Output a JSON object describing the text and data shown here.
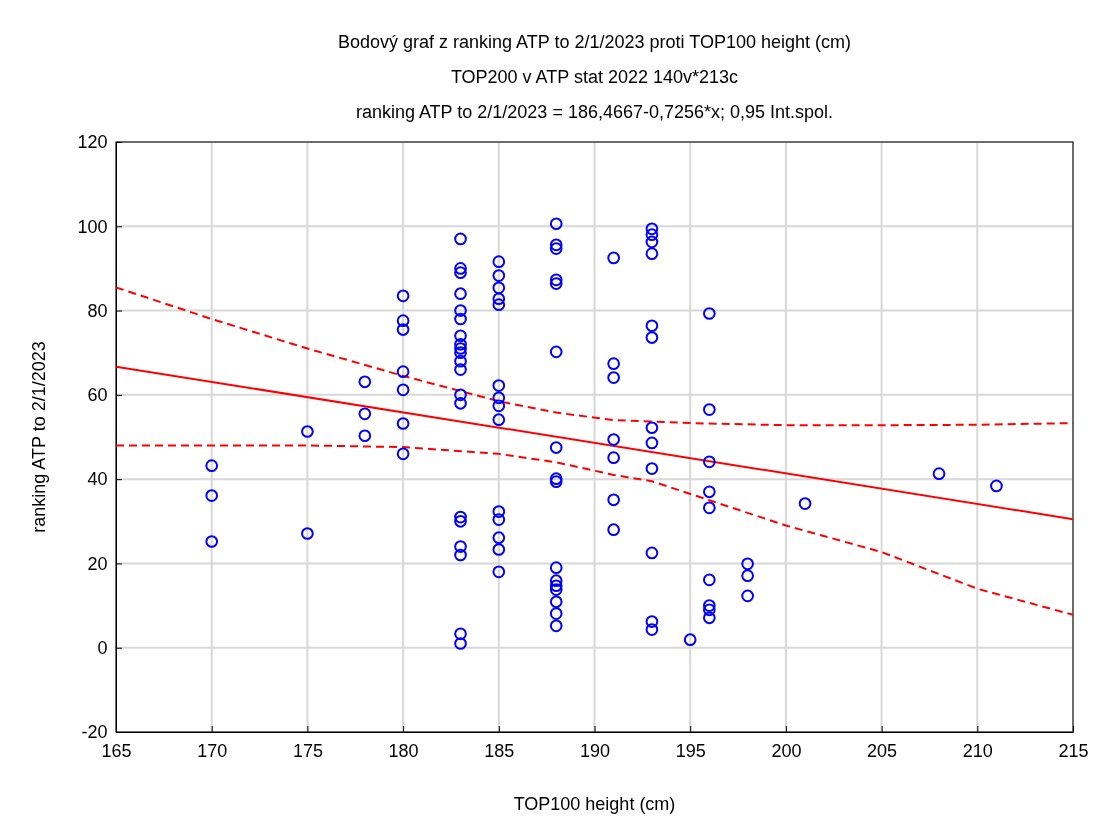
{
  "chart_data": {
    "type": "scatter",
    "title": "Bodový graf z ranking ATP to 2/1/2023 proti TOP100 height (cm)",
    "subtitle": "TOP200 v ATP stat 2022 140v*213c",
    "annotations": [
      "ranking ATP to 2/1/2023 = 186,4667-0,7256*x; 0,95 Int.spol."
    ],
    "xlabel": "TOP100 height (cm)",
    "ylabel": "ranking ATP to 2/1/2023",
    "xlim": [
      165,
      215
    ],
    "xticks": [
      165,
      170,
      175,
      180,
      185,
      190,
      195,
      200,
      205,
      210,
      215
    ],
    "ylim": [
      -20,
      120
    ],
    "yticks": [
      -20,
      0,
      20,
      40,
      60,
      80,
      100,
      120
    ],
    "grid": true,
    "marker": "circle",
    "series": [
      {
        "color": "#0000ff",
        "x": [
          170,
          170,
          170,
          175,
          175,
          178,
          178,
          178,
          180,
          180,
          180,
          180,
          180,
          180,
          180,
          183,
          183,
          183,
          183,
          183,
          183,
          183,
          183,
          183,
          183,
          183,
          183,
          183,
          183,
          183,
          183,
          183,
          183,
          183,
          183,
          185,
          185,
          185,
          185,
          185,
          185,
          185,
          185,
          185,
          185,
          185,
          185,
          185,
          185,
          188,
          188,
          188,
          188,
          188,
          188,
          188,
          188,
          188,
          188,
          188,
          188,
          188,
          188,
          188,
          188,
          191,
          191,
          191,
          191,
          191,
          191,
          191,
          193,
          193,
          193,
          193,
          193,
          193,
          193,
          193,
          193,
          193,
          193,
          193,
          195,
          196,
          196,
          196,
          196,
          196,
          196,
          196,
          196,
          196,
          198,
          198,
          198,
          201,
          208,
          211
        ],
        "values": [
          43.2,
          36.1,
          25.2,
          51.3,
          27.1,
          63.1,
          55.5,
          50.3,
          83.5,
          77.6,
          75.5,
          65.5,
          61.2,
          53.2,
          46,
          97,
          90,
          89,
          84,
          80,
          78,
          74,
          72,
          71,
          70,
          68,
          66,
          60,
          58,
          31,
          30,
          24,
          22,
          3.3,
          1,
          91.6,
          88.3,
          85.4,
          82.8,
          81.4,
          62.2,
          59.3,
          57.4,
          54.1,
          32.3,
          30.4,
          26.1,
          23.3,
          18,
          100.6,
          95.6,
          94.7,
          87.3,
          86.4,
          70.2,
          47.5,
          40.1,
          39.4,
          19,
          15.9,
          14.7,
          13.8,
          10.9,
          8.1,
          5.2,
          92.5,
          67.4,
          64.1,
          49.4,
          45.1,
          35.1,
          28,
          99.4,
          98,
          96.3,
          93.5,
          76.4,
          73.6,
          52.2,
          48.6,
          42.5,
          22.5,
          6.2,
          4.3,
          1.9,
          79.3,
          56.5,
          44.1,
          37,
          33.2,
          16.1,
          10,
          9,
          7.1,
          19.9,
          17.1,
          12.3,
          34.2,
          41.3,
          38.4
        ]
      },
      {
        "type": "line",
        "color": "#ff0000",
        "line_style": "solid",
        "marker": "none",
        "x": [
          165,
          215
        ],
        "values": [
          66.7,
          30.5
        ]
      },
      {
        "type": "line",
        "color": "#ff0000",
        "line_style": "dashed",
        "marker": "none",
        "x": [
          165,
          170,
          175,
          180,
          185,
          188,
          191,
          195,
          200,
          205,
          210,
          215
        ],
        "values": [
          85.5,
          78,
          71,
          64.5,
          58.5,
          55.8,
          54,
          53.3,
          52.8,
          52.8,
          52.9,
          53.3
        ]
      },
      {
        "type": "line",
        "color": "#ff0000",
        "line_style": "dashed",
        "marker": "none",
        "x": [
          165,
          170,
          175,
          180,
          185,
          188,
          191,
          193,
          196,
          200,
          205,
          210,
          215
        ],
        "values": [
          48,
          48,
          48,
          47.6,
          46,
          44,
          41,
          39.5,
          35,
          29,
          22.7,
          14,
          7.8
        ]
      }
    ]
  }
}
